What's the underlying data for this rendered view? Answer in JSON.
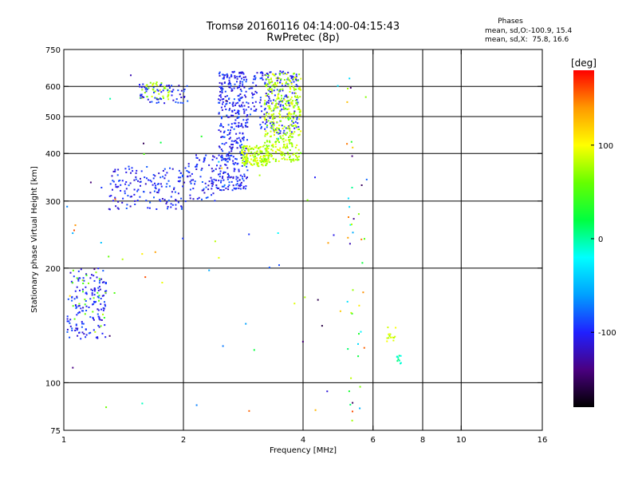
{
  "header": {
    "title_line1": "Tromsø 20160116 04:14:00-04:15:43",
    "title_line2": "RwPretec (8p)",
    "phases_title": "Phases",
    "stat_o": "mean, sd,O:-100.9, 15.4",
    "stat_x": "mean, sd,X:  75.8, 16.6"
  },
  "chart_data": {
    "type": "scatter",
    "xlabel": "Frequency [MHz]",
    "ylabel": "Stationary phase Virtual Height [km]",
    "xscale": "log",
    "yscale": "log",
    "xlim": [
      1,
      16
    ],
    "ylim": [
      75,
      750
    ],
    "xticks": [
      1,
      2,
      4,
      6,
      8,
      10,
      16
    ],
    "xticklabels": [
      "1",
      "2",
      "4",
      "6",
      "8",
      "10",
      "16"
    ],
    "xgrid": [
      2,
      4,
      6,
      8,
      10
    ],
    "yticks": [
      75,
      100,
      200,
      300,
      400,
      500,
      600,
      750
    ],
    "yticklabels": [
      "75",
      "100",
      "200",
      "300",
      "400",
      "500",
      "600",
      "750"
    ],
    "ygrid": [
      100,
      200,
      300,
      400,
      500,
      600
    ],
    "grid": true,
    "colorbar": {
      "label": "[deg]",
      "min": -180,
      "max": 180,
      "ticks": [
        100,
        0,
        -100
      ],
      "ticklabels": [
        "100",
        "0",
        "-100"
      ],
      "colors": [
        "#000000",
        "#4a0080",
        "#2020ff",
        "#00a0ff",
        "#00ffff",
        "#00ff40",
        "#66ff00",
        "#ffff00",
        "#ff9900",
        "#ff0000"
      ]
    },
    "clusters": [
      {
        "name": "o-low",
        "f": [
          1.02,
          1.28
        ],
        "h": [
          130,
          200
        ],
        "ph": -100,
        "n": 150
      },
      {
        "name": "o-low-mixed",
        "f": [
          1.05,
          1.28
        ],
        "h": [
          140,
          200
        ],
        "ph": 60,
        "n": 25
      },
      {
        "name": "o-ramp",
        "f": [
          1.3,
          2.05
        ],
        "h": [
          285,
          370
        ],
        "ph": -100,
        "n": 160
      },
      {
        "name": "o-low-f2",
        "f": [
          2.05,
          2.45
        ],
        "h": [
          300,
          400
        ],
        "ph": -100,
        "n": 80
      },
      {
        "name": "o-f2-a",
        "f": [
          2.45,
          2.9
        ],
        "h": [
          320,
          660
        ],
        "ph": -100,
        "n": 380
      },
      {
        "name": "o-f2-b",
        "f": [
          2.9,
          3.9
        ],
        "h": [
          450,
          660
        ],
        "ph": -100,
        "n": 200
      },
      {
        "name": "x-f2-a",
        "f": [
          2.8,
          3.3
        ],
        "h": [
          370,
          420
        ],
        "ph": 80,
        "n": 150
      },
      {
        "name": "x-f2-b",
        "f": [
          3.2,
          3.95
        ],
        "h": [
          380,
          650
        ],
        "ph": 80,
        "n": 350
      },
      {
        "name": "x-early",
        "f": [
          1.55,
          1.85
        ],
        "h": [
          555,
          620
        ],
        "ph": 75,
        "n": 40
      },
      {
        "name": "o-early",
        "f": [
          1.55,
          2.05
        ],
        "h": [
          540,
          610
        ],
        "ph": -100,
        "n": 60
      },
      {
        "name": "x-cusp",
        "f": [
          6.5,
          6.85
        ],
        "h": [
          128,
          140
        ],
        "ph": 90,
        "n": 14
      },
      {
        "name": "o-cusp",
        "f": [
          6.85,
          7.1
        ],
        "h": [
          112,
          118
        ],
        "ph": -10,
        "n": 10
      },
      {
        "name": "noise-52",
        "f": [
          5.15,
          5.35
        ],
        "h": [
          78,
          680
        ],
        "ph": 0,
        "n": 28
      },
      {
        "name": "noise-56",
        "f": [
          5.5,
          5.75
        ],
        "h": [
          80,
          420
        ],
        "ph": 0,
        "n": 12
      },
      {
        "name": "noise",
        "f": [
          1.0,
          5.9
        ],
        "h": [
          80,
          700
        ],
        "ph": 0,
        "n": 70
      }
    ]
  }
}
